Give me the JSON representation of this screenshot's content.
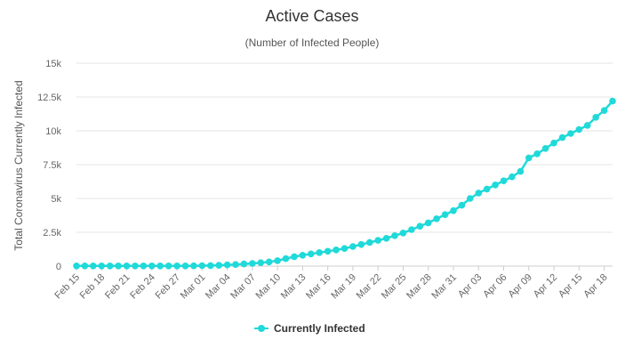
{
  "chart_data": {
    "type": "line",
    "title": "Active Cases",
    "subtitle": "(Number of Infected People)",
    "ylabel": "Total Coronavirus Currently Infected",
    "xlabel": "",
    "ylim": [
      0,
      15000
    ],
    "yticks": [
      {
        "value": 0,
        "label": "0"
      },
      {
        "value": 2500,
        "label": "2.5k"
      },
      {
        "value": 5000,
        "label": "5k"
      },
      {
        "value": 7500,
        "label": "7.5k"
      },
      {
        "value": 10000,
        "label": "10k"
      },
      {
        "value": 12500,
        "label": "12.5k"
      },
      {
        "value": 15000,
        "label": "15k"
      }
    ],
    "grid": true,
    "legend_position": "bottom-center",
    "x": [
      "Feb 15",
      "Feb 16",
      "Feb 17",
      "Feb 18",
      "Feb 19",
      "Feb 20",
      "Feb 21",
      "Feb 22",
      "Feb 23",
      "Feb 24",
      "Feb 25",
      "Feb 26",
      "Feb 27",
      "Feb 28",
      "Feb 29",
      "Mar 01",
      "Mar 02",
      "Mar 03",
      "Mar 04",
      "Mar 05",
      "Mar 06",
      "Mar 07",
      "Mar 08",
      "Mar 09",
      "Mar 10",
      "Mar 11",
      "Mar 12",
      "Mar 13",
      "Mar 14",
      "Mar 15",
      "Mar 16",
      "Mar 17",
      "Mar 18",
      "Mar 19",
      "Mar 20",
      "Mar 21",
      "Mar 22",
      "Mar 23",
      "Mar 24",
      "Mar 25",
      "Mar 26",
      "Mar 27",
      "Mar 28",
      "Mar 29",
      "Mar 30",
      "Mar 31",
      "Apr 01",
      "Apr 02",
      "Apr 03",
      "Apr 04",
      "Apr 05",
      "Apr 06",
      "Apr 07",
      "Apr 08",
      "Apr 09",
      "Apr 10",
      "Apr 11",
      "Apr 12",
      "Apr 13",
      "Apr 14",
      "Apr 15",
      "Apr 16",
      "Apr 17",
      "Apr 18",
      "Apr 19"
    ],
    "x_tick_labels": [
      "Feb 15",
      "Feb 18",
      "Feb 21",
      "Feb 24",
      "Feb 27",
      "Mar 01",
      "Mar 04",
      "Mar 07",
      "Mar 10",
      "Mar 13",
      "Mar 16",
      "Mar 19",
      "Mar 22",
      "Mar 25",
      "Mar 28",
      "Mar 31",
      "Apr 03",
      "Apr 06",
      "Apr 09",
      "Apr 12",
      "Apr 15",
      "Apr 18"
    ],
    "series": [
      {
        "name": "Currently Infected",
        "color": "#20d9d9",
        "values": [
          10,
          10,
          10,
          10,
          10,
          10,
          10,
          10,
          10,
          10,
          10,
          12,
          12,
          15,
          20,
          30,
          40,
          60,
          90,
          120,
          160,
          200,
          250,
          310,
          400,
          550,
          700,
          800,
          900,
          1000,
          1100,
          1200,
          1300,
          1450,
          1600,
          1750,
          1900,
          2050,
          2250,
          2450,
          2700,
          2950,
          3200,
          3500,
          3800,
          4100,
          4500,
          5000,
          5400,
          5700,
          6000,
          6300,
          6600,
          7000,
          8000,
          8300,
          8700,
          9100,
          9500,
          9800,
          10100,
          10400,
          11000,
          11500,
          12200
        ]
      }
    ]
  }
}
